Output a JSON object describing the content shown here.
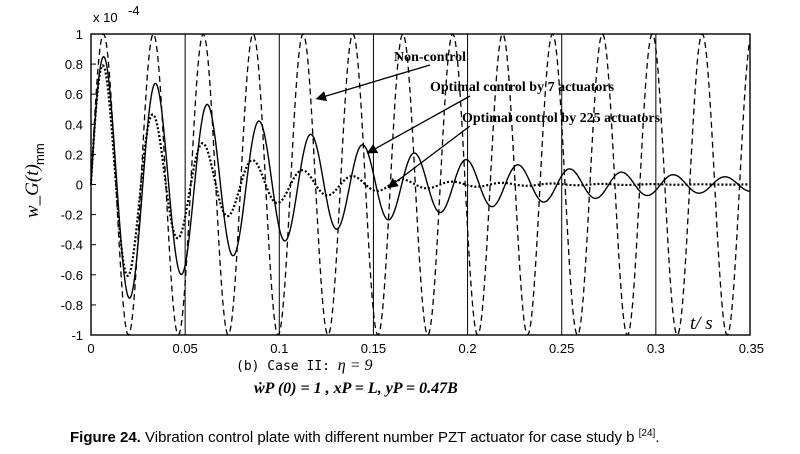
{
  "chart_data": {
    "type": "line",
    "title": "",
    "xlabel": "t/ s",
    "ylabel": "w_G(t)",
    "yunit": "mm",
    "exponent_label": "x 10",
    "exponent_power": "-4",
    "xlim": [
      0,
      0.35
    ],
    "ylim": [
      -1,
      1
    ],
    "xticks": [
      "0",
      "0.05",
      "0.1",
      "0.15",
      "0.2",
      "0.25",
      "0.3",
      "0.35"
    ],
    "yticks": [
      "1",
      "0.8",
      "0.6",
      "0.4",
      "0.2",
      "0",
      "-0.2",
      "-0.4",
      "-0.6",
      "-0.8",
      "-1"
    ],
    "grid": "vertical",
    "series": [
      {
        "name": "Non-control",
        "style": "dashed",
        "period": 0.0265,
        "decay": 0.0,
        "amplitude": 1.0
      },
      {
        "name": "Optimal control by 7 actuators",
        "style": "solid",
        "period": 0.0275,
        "decay": 8.5,
        "amplitude": 0.9
      },
      {
        "name": "Optimal control by 225 actuators",
        "style": "dotted",
        "period": 0.0265,
        "decay": 20.0,
        "amplitude": 0.9
      }
    ],
    "annotations": [
      {
        "text": "Non-control",
        "target_x": 0.12,
        "target_y": 0.57
      },
      {
        "text": "Optimal control by 7 actuators",
        "target_x": 0.147,
        "target_y": 0.21
      },
      {
        "text": "Optimal control by 225 actuators",
        "target_x": 0.158,
        "target_y": -0.02
      }
    ]
  },
  "subtitle": {
    "prefix": "(b)  Case  II: ",
    "eta": "η = 9"
  },
  "conditions": "ẇP (0) = 1 , xP = L, yP = 0.47B",
  "caption": {
    "label": "Figure 24.",
    "text": " Vibration control plate with different number PZT actuator for case study b ",
    "ref": "[24]",
    "end": "."
  }
}
